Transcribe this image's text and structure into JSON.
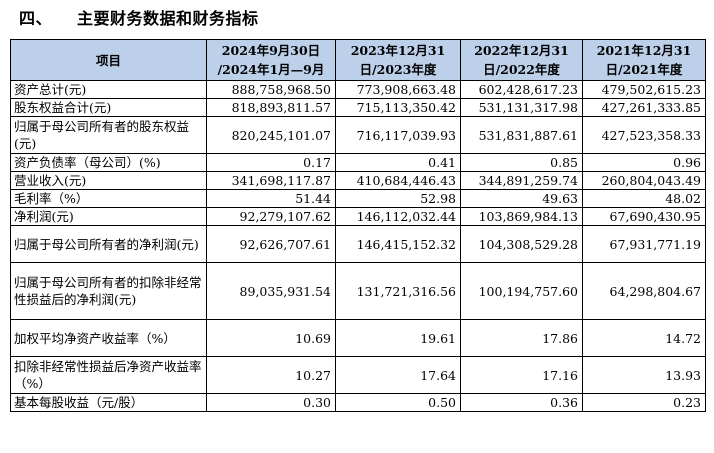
{
  "section": {
    "number": "四、",
    "title": "主要财务数据和财务指标"
  },
  "table": {
    "header_item": "项目",
    "columns": [
      {
        "line1": "2024年9月30日",
        "line2": "/2024年1月—9月"
      },
      {
        "line1": "2023年12月31",
        "line2": "日/2023年度"
      },
      {
        "line1": "2022年12月31",
        "line2": "日/2022年度"
      },
      {
        "line1": "2021年12月31",
        "line2": "日/2021年度"
      }
    ],
    "rows": [
      {
        "label": "资产总计(元)",
        "values": [
          "888,758,968.50",
          "773,908,663.48",
          "602,428,617.23",
          "479,502,615.23"
        ]
      },
      {
        "label": "股东权益合计(元)",
        "values": [
          "818,893,811.57",
          "715,113,350.42",
          "531,131,317.98",
          "427,261,333.85"
        ]
      },
      {
        "label": "归属于母公司所有者的股东权益(元)",
        "values": [
          "820,245,101.07",
          "716,117,039.93",
          "531,831,887.61",
          "427,523,358.33"
        ]
      },
      {
        "label": "资产负债率（母公司）(%)",
        "values": [
          "0.17",
          "0.41",
          "0.85",
          "0.96"
        ]
      },
      {
        "label": "营业收入(元)",
        "values": [
          "341,698,117.87",
          "410,684,446.43",
          "344,891,259.74",
          "260,804,043.49"
        ]
      },
      {
        "label": "毛利率（%）",
        "values": [
          "51.44",
          "52.98",
          "49.63",
          "48.02"
        ]
      },
      {
        "label": "净利润(元)",
        "values": [
          "92,279,107.62",
          "146,112,032.44",
          "103,869,984.13",
          "67,690,430.95"
        ]
      },
      {
        "label": "归属于母公司所有者的净利润(元)",
        "values": [
          "92,626,707.61",
          "146,415,152.32",
          "104,308,529.28",
          "67,931,771.19"
        ]
      },
      {
        "label": "归属于母公司所有者的扣除非经常性损益后的净利润(元)",
        "values": [
          "89,035,931.54",
          "131,721,316.56",
          "100,194,757.60",
          "64,298,804.67"
        ]
      },
      {
        "label": "加权平均净资产收益率（%）",
        "values": [
          "10.69",
          "19.61",
          "17.86",
          "14.72"
        ]
      },
      {
        "label": "扣除非经常性损益后净资产收益率（%）",
        "values": [
          "10.27",
          "17.64",
          "17.16",
          "13.93"
        ]
      },
      {
        "label": "基本每股收益（元/股）",
        "values": [
          "0.30",
          "0.50",
          "0.36",
          "0.23"
        ]
      }
    ]
  }
}
